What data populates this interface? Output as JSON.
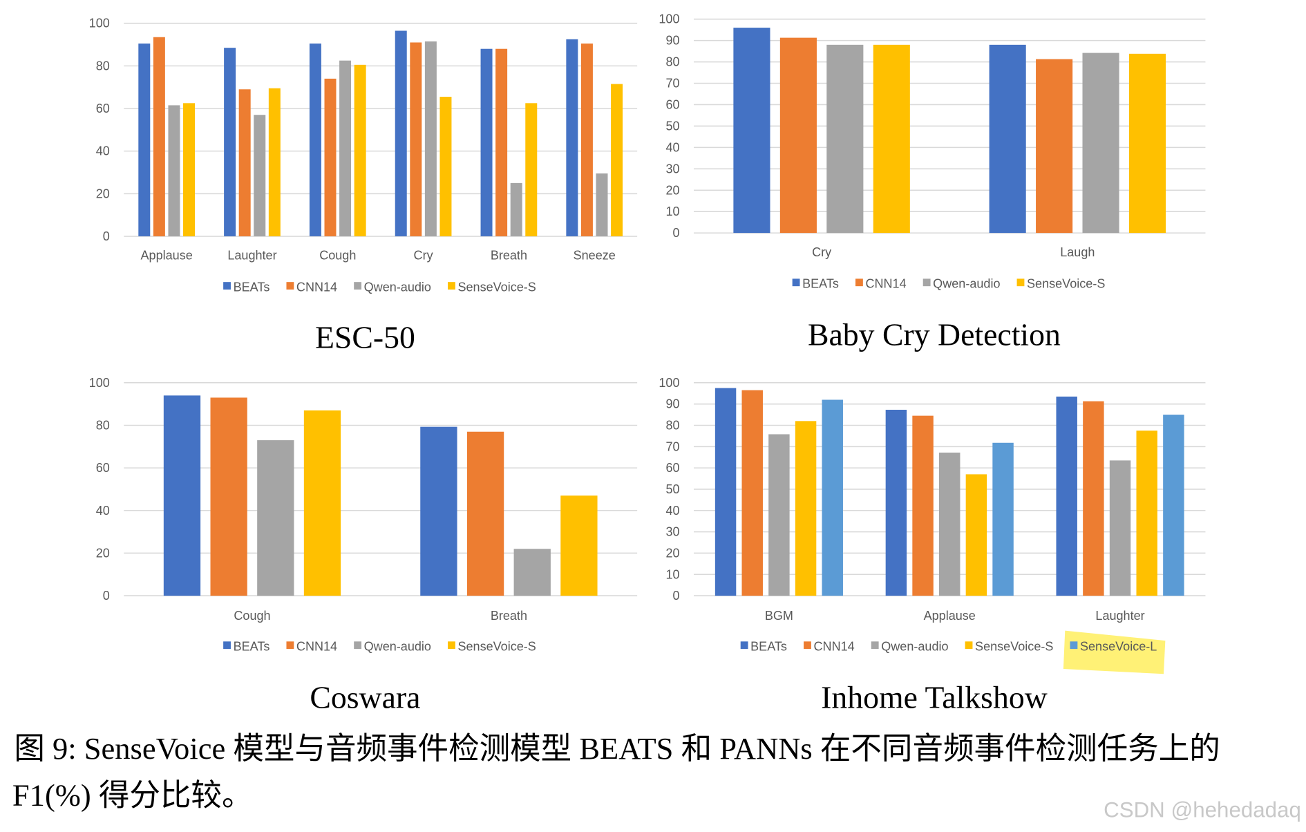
{
  "colors": {
    "BEATs": "#4472C4",
    "CNN14": "#ED7D31",
    "Qwen-audio": "#A5A5A5",
    "SenseVoice-S": "#FFC000",
    "SenseVoice-L": "#5B9BD5",
    "grid": "#D9D9D9",
    "highlight": "#FFF176"
  },
  "chart_data": [
    {
      "type": "bar",
      "title": "ESC-50",
      "ylim": [
        0,
        100
      ],
      "yticks": [
        0,
        20,
        40,
        60,
        80,
        100
      ],
      "grid": true,
      "legend": "bottom",
      "categories": [
        "Applause",
        "Laughter",
        "Cough",
        "Cry",
        "Breath",
        "Sneeze"
      ],
      "series": [
        {
          "name": "BEATs",
          "values": [
            90.5,
            88.5,
            90.5,
            96.5,
            88,
            92.5
          ]
        },
        {
          "name": "CNN14",
          "values": [
            93.5,
            69,
            74,
            91,
            88,
            90.5
          ]
        },
        {
          "name": "Qwen-audio",
          "values": [
            61.5,
            57,
            82.5,
            91.5,
            25,
            29.5
          ]
        },
        {
          "name": "SenseVoice-S",
          "values": [
            62.5,
            69.5,
            80.5,
            65.5,
            62.5,
            71.5
          ]
        }
      ]
    },
    {
      "type": "bar",
      "title": "Baby Cry Detection",
      "ylim": [
        0,
        100
      ],
      "yticks": [
        0,
        10,
        20,
        30,
        40,
        50,
        60,
        70,
        80,
        90,
        100
      ],
      "grid": true,
      "legend": "bottom",
      "categories": [
        "Cry",
        "Laugh"
      ],
      "series": [
        {
          "name": "BEATs",
          "values": [
            96,
            88
          ]
        },
        {
          "name": "CNN14",
          "values": [
            91.3,
            81.3
          ]
        },
        {
          "name": "Qwen-audio",
          "values": [
            88,
            84.2
          ]
        },
        {
          "name": "SenseVoice-S",
          "values": [
            88,
            83.8
          ]
        }
      ]
    },
    {
      "type": "bar",
      "title": "Coswara",
      "ylim": [
        0,
        100
      ],
      "yticks": [
        0,
        20,
        40,
        60,
        80,
        100
      ],
      "grid": true,
      "legend": "bottom",
      "categories": [
        "Cough",
        "Breath"
      ],
      "series": [
        {
          "name": "BEATs",
          "values": [
            94,
            79.3
          ]
        },
        {
          "name": "CNN14",
          "values": [
            93,
            77
          ]
        },
        {
          "name": "Qwen-audio",
          "values": [
            73,
            22
          ]
        },
        {
          "name": "SenseVoice-S",
          "values": [
            87,
            47
          ]
        }
      ]
    },
    {
      "type": "bar",
      "title": "Inhome Talkshow",
      "ylim": [
        0,
        100
      ],
      "yticks": [
        0,
        10,
        20,
        30,
        40,
        50,
        60,
        70,
        80,
        90,
        100
      ],
      "grid": true,
      "legend": "bottom",
      "highlighted_legend": "SenseVoice-L",
      "categories": [
        "BGM",
        "Applause",
        "Laughter"
      ],
      "series": [
        {
          "name": "BEATs",
          "values": [
            97.5,
            87.3,
            93.5
          ]
        },
        {
          "name": "CNN14",
          "values": [
            96.5,
            84.5,
            91.3
          ]
        },
        {
          "name": "Qwen-audio",
          "values": [
            75.8,
            67.2,
            63.5
          ]
        },
        {
          "name": "SenseVoice-S",
          "values": [
            82,
            57,
            77.5
          ]
        },
        {
          "name": "SenseVoice-L",
          "values": [
            92,
            71.8,
            85
          ]
        }
      ]
    }
  ],
  "caption": {
    "line1": "图 9:  SenseVoice 模型与音频事件检测模型 BEATS 和 PANNs 在不同音频事件检测任务上的",
    "line2": "F1(%) 得分比较。"
  },
  "watermark": "CSDN @hehedadaq"
}
